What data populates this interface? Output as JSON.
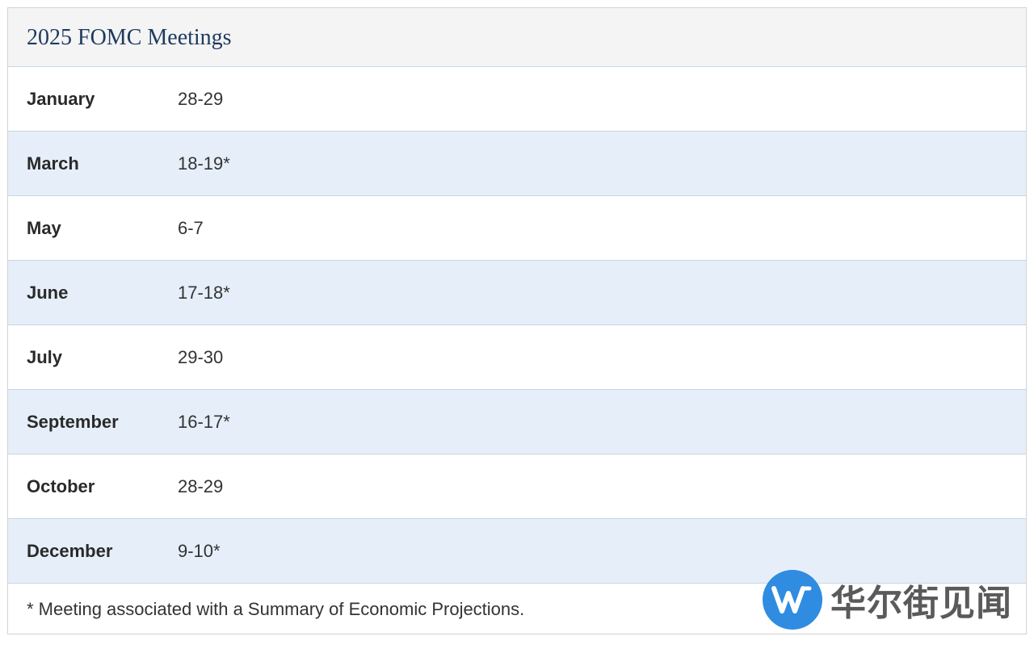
{
  "title": "2025 FOMC Meetings",
  "meetings": [
    {
      "month": "January",
      "dates": "28-29"
    },
    {
      "month": "March",
      "dates": "18-19*"
    },
    {
      "month": "May",
      "dates": "6-7"
    },
    {
      "month": "June",
      "dates": "17-18*"
    },
    {
      "month": "July",
      "dates": "29-30"
    },
    {
      "month": "September",
      "dates": "16-17*"
    },
    {
      "month": "October",
      "dates": "28-29"
    },
    {
      "month": "December",
      "dates": "9-10*"
    }
  ],
  "footnote": "* Meeting associated with a Summary of Economic Projections.",
  "watermark": {
    "brand": "华尔街见闻",
    "color": "#2f8ce0"
  }
}
